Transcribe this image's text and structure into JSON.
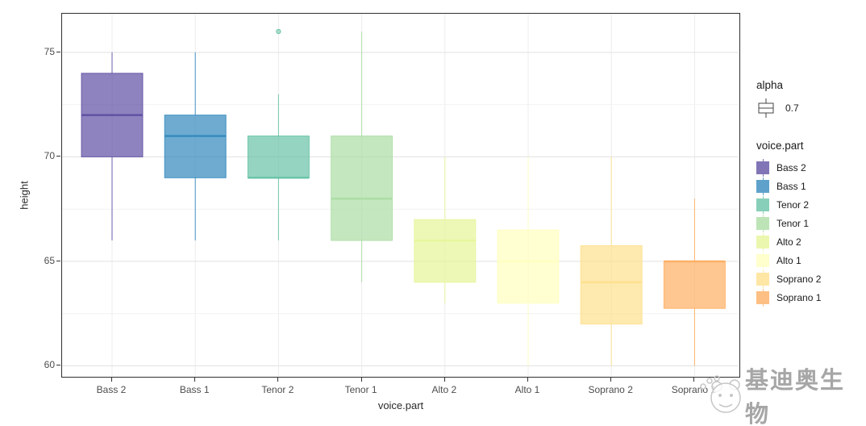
{
  "chart_data": {
    "type": "boxplot",
    "title": "",
    "xlabel": "voice.part",
    "ylabel": "height",
    "categories": [
      "Bass 2",
      "Bass 1",
      "Tenor 2",
      "Tenor 1",
      "Alto 2",
      "Alto 1",
      "Soprano 2",
      "Soprano 1"
    ],
    "alpha": 0.7,
    "ylim": [
      59.4,
      76.85
    ],
    "yticks": [
      60,
      65,
      70,
      75
    ],
    "yticks_minor": [
      62.5,
      67.5,
      72.5
    ],
    "grid": "major and minor horizontal, vertical line at each category",
    "legend_position": "right",
    "series": [
      {
        "name": "Bass 2",
        "color": "#5e4fa2",
        "min": 66,
        "q1": 70,
        "median": 72,
        "q3": 74,
        "max": 75,
        "outliers": []
      },
      {
        "name": "Bass 1",
        "color": "#3288bd",
        "min": 66,
        "q1": 69,
        "median": 71,
        "q3": 72,
        "max": 75,
        "outliers": []
      },
      {
        "name": "Tenor 2",
        "color": "#66c2a5",
        "min": 66,
        "q1": 69,
        "median": 69,
        "q3": 71,
        "max": 73,
        "outliers": [
          76
        ]
      },
      {
        "name": "Tenor 1",
        "color": "#abdda4",
        "min": 64,
        "q1": 66,
        "median": 68,
        "q3": 71,
        "max": 76,
        "outliers": []
      },
      {
        "name": "Alto 2",
        "color": "#e6f598",
        "min": 63,
        "q1": 64,
        "median": 66,
        "q3": 67,
        "max": 70,
        "outliers": []
      },
      {
        "name": "Alto 1",
        "color": "#ffffbf",
        "min": 60,
        "q1": 63,
        "median": 65,
        "q3": 66.5,
        "max": 70,
        "outliers": []
      },
      {
        "name": "Soprano 2",
        "color": "#fee08b",
        "min": 60,
        "q1": 62,
        "median": 64,
        "q3": 65.75,
        "max": 70,
        "outliers": []
      },
      {
        "name": "Soprano 1",
        "color": "#fdae61",
        "min": 60,
        "q1": 62.75,
        "median": 65,
        "q3": 65,
        "max": 68,
        "outliers": []
      }
    ]
  },
  "axes": {
    "y_title": "height",
    "x_title": "voice.part",
    "y_tick_labels": [
      "60",
      "65",
      "70",
      "75"
    ],
    "x_tick_labels": [
      "Bass 2",
      "Bass 1",
      "Tenor 2",
      "Tenor 1",
      "Alto 2",
      "Alto 1",
      "Soprano 2",
      "Soprano 1"
    ]
  },
  "legend": {
    "alpha_title": "alpha",
    "alpha_value": "0.7",
    "voice_title": "voice.part"
  },
  "watermark": {
    "text": "基迪奥生物"
  },
  "colors": {
    "panel_border": "#2f2f2f",
    "grid_major": "#e4e4e4",
    "grid_minor": "#f2f2f2",
    "grid_vertical": "#ececec",
    "tick_text": "#4d4d4d",
    "watermark_text": "#a6a6a6"
  }
}
